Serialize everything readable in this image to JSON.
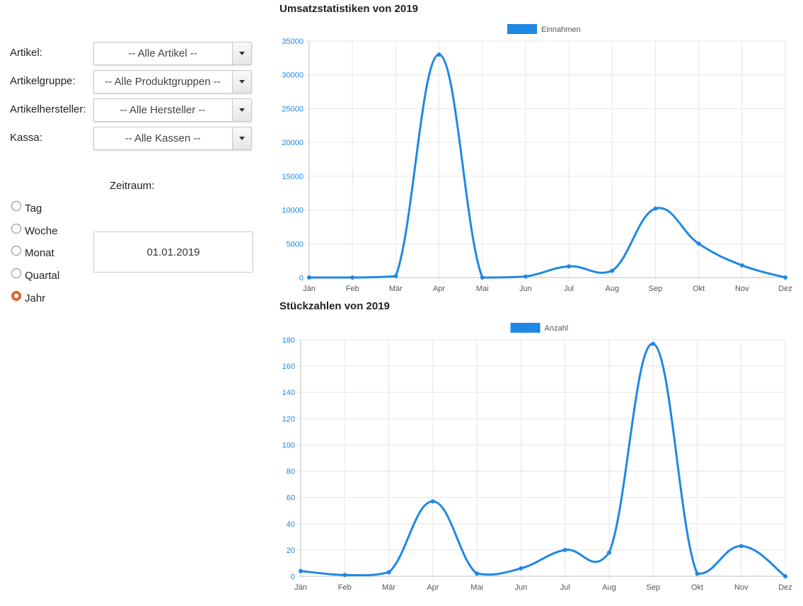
{
  "filters": {
    "artikel": {
      "label": "Artikel:",
      "value": "-- Alle Artikel --"
    },
    "gruppe": {
      "label": "Artikelgruppe:",
      "value": "-- Alle Produktgruppen --"
    },
    "hersteller": {
      "label": "Artikelhersteller:",
      "value": "-- Alle Hersteller --"
    },
    "kassa": {
      "label": "Kassa:",
      "value": "-- Alle Kassen --"
    }
  },
  "zeitraum": {
    "label": "Zeitraum:",
    "options": [
      "Tag",
      "Woche",
      "Monat",
      "Quartal",
      "Jahr"
    ],
    "selected": "Jahr",
    "date": "01.01.2019"
  },
  "colors": {
    "series": "#1e88e5",
    "legend": "#1e88e5",
    "grid": "#e6e6e6"
  },
  "chart_data": [
    {
      "type": "line",
      "title": "Umsatzstatistiken von 2019",
      "categories": [
        "Jän",
        "Feb",
        "Mär",
        "Apr",
        "Mai",
        "Jun",
        "Jul",
        "Aug",
        "Sep",
        "Okt",
        "Nov",
        "Dez"
      ],
      "series": [
        {
          "name": "Einnahmen",
          "values": [
            0,
            0,
            200,
            33000,
            0,
            150,
            1650,
            1000,
            10200,
            5000,
            1800,
            0
          ]
        }
      ],
      "ylim": [
        0,
        35000
      ],
      "yticks": [
        0,
        5000,
        10000,
        15000,
        20000,
        25000,
        30000,
        35000
      ],
      "grid": true,
      "legend": "top"
    },
    {
      "type": "line",
      "title": "Stückzahlen von 2019",
      "categories": [
        "Jän",
        "Feb",
        "Mär",
        "Apr",
        "Mai",
        "Jun",
        "Jul",
        "Aug",
        "Sep",
        "Okt",
        "Nov",
        "Dez"
      ],
      "series": [
        {
          "name": "Anzahl",
          "values": [
            4,
            1,
            3,
            57,
            2,
            6,
            20,
            18,
            177,
            2,
            23,
            0
          ]
        }
      ],
      "ylim": [
        0,
        180
      ],
      "yticks": [
        0,
        20,
        40,
        60,
        80,
        100,
        120,
        140,
        160,
        180
      ],
      "grid": true,
      "legend": "top"
    }
  ]
}
